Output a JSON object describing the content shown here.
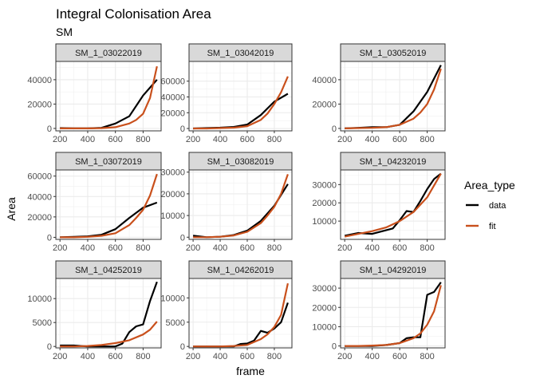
{
  "title": "Integral Colonisation Area",
  "subtitle": "SM",
  "xlabel": "frame",
  "ylabel": "Area",
  "legend": {
    "title": "Area_type",
    "placement": "right",
    "entries": [
      {
        "label": "data",
        "color": "#000000"
      },
      {
        "label": "fit",
        "color": "#C9501C"
      }
    ]
  },
  "chart_data": {
    "type": "line",
    "facets": "3x3 grid, free y scales, shared x scale",
    "xlim": [
      170,
      930
    ],
    "xticks": [
      200,
      400,
      600,
      800
    ],
    "grid": true,
    "panels": [
      {
        "title": "SM_1_03022019",
        "ylim": [
          -2000,
          55000
        ],
        "yticks": [
          0,
          20000,
          40000
        ],
        "yticklabels": [
          "0",
          "20000",
          "40000"
        ],
        "series": [
          {
            "name": "data",
            "x": [
              200,
              300,
              400,
              500,
              600,
              700,
              800,
              900
            ],
            "y": [
              300,
              100,
              0,
              500,
              4000,
              10000,
              27000,
              40000
            ]
          },
          {
            "name": "fit",
            "x": [
              200,
              300,
              400,
              500,
              600,
              700,
              750,
              800,
              850,
              900
            ],
            "y": [
              0,
              0,
              0,
              200,
              1000,
              4000,
              7000,
              12000,
              25000,
              51000
            ]
          }
        ]
      },
      {
        "title": "SM_1_03042019",
        "ylim": [
          -3000,
          85000
        ],
        "yticks": [
          0,
          20000,
          40000,
          60000
        ],
        "yticklabels": [
          "0",
          "20000",
          "40000",
          "60000"
        ],
        "series": [
          {
            "name": "data",
            "x": [
              200,
              300,
              400,
              500,
              600,
              700,
              800,
              900
            ],
            "y": [
              0,
              500,
              1000,
              2000,
              5000,
              17000,
              34000,
              44000
            ]
          },
          {
            "name": "fit",
            "x": [
              200,
              300,
              400,
              500,
              600,
              700,
              750,
              800,
              850,
              900
            ],
            "y": [
              0,
              0,
              500,
              1000,
              3000,
              11000,
              19000,
              31000,
              46000,
              66000
            ]
          }
        ]
      },
      {
        "title": "SM_1_03052019",
        "ylim": [
          -2000,
          55000
        ],
        "yticks": [
          0,
          20000,
          40000
        ],
        "yticklabels": [
          "0",
          "20000",
          "40000"
        ],
        "series": [
          {
            "name": "data",
            "x": [
              200,
              300,
              400,
              500,
              600,
              700,
              800,
              900
            ],
            "y": [
              0,
              500,
              1000,
              1000,
              3000,
              14000,
              30000,
              52000
            ]
          },
          {
            "name": "fit",
            "x": [
              200,
              300,
              400,
              500,
              600,
              700,
              750,
              800,
              850,
              900
            ],
            "y": [
              0,
              300,
              500,
              1000,
              3000,
              8000,
              13000,
              20000,
              32000,
              49000
            ]
          }
        ]
      },
      {
        "title": "SM_1_03072019",
        "ylim": [
          -2000,
          66000
        ],
        "yticks": [
          0,
          20000,
          40000,
          60000
        ],
        "yticklabels": [
          "0",
          "20000",
          "40000",
          "60000"
        ],
        "series": [
          {
            "name": "data",
            "x": [
              200,
              300,
              400,
              500,
              600,
              700,
              800,
              900
            ],
            "y": [
              0,
              500,
              1000,
              2500,
              8000,
              19000,
              29000,
              34000
            ]
          },
          {
            "name": "fit",
            "x": [
              200,
              300,
              400,
              500,
              600,
              700,
              750,
              800,
              850,
              900
            ],
            "y": [
              0,
              0,
              500,
              1500,
              4000,
              12000,
              19000,
              27000,
              41000,
              62000
            ]
          }
        ]
      },
      {
        "title": "SM_1_03082019",
        "ylim": [
          -1000,
          31000
        ],
        "yticks": [
          0,
          10000,
          20000,
          30000
        ],
        "yticklabels": [
          "0",
          "10000",
          "20000",
          "30000"
        ],
        "series": [
          {
            "name": "data",
            "x": [
              200,
              300,
              400,
              500,
              600,
              700,
              800,
              900
            ],
            "y": [
              700,
              0,
              200,
              1000,
              3000,
              7500,
              14500,
              24500
            ]
          },
          {
            "name": "fit",
            "x": [
              200,
              300,
              400,
              500,
              600,
              700,
              750,
              800,
              850,
              900
            ],
            "y": [
              0,
              0,
              200,
              800,
              2500,
              6500,
              10000,
              14000,
              20000,
              29000
            ]
          }
        ]
      },
      {
        "title": "SM_1_04232019",
        "ylim": [
          0,
          38000
        ],
        "yticks": [
          10000,
          20000,
          30000
        ],
        "yticklabels": [
          "10000",
          "20000",
          "30000"
        ],
        "series": [
          {
            "name": "data",
            "x": [
              200,
              300,
              400,
              500,
              550,
              600,
              650,
              700,
              750,
              800,
              850,
              900
            ],
            "y": [
              2000,
              3500,
              3000,
              5000,
              6000,
              10500,
              15500,
              15000,
              21000,
              27500,
              33000,
              36000
            ]
          },
          {
            "name": "fit",
            "x": [
              200,
              300,
              400,
              500,
              600,
              700,
              800,
              900
            ],
            "y": [
              1500,
              3000,
              4500,
              6500,
              10000,
              15000,
              23000,
              36000
            ]
          }
        ]
      },
      {
        "title": "SM_1_04252019",
        "ylim": [
          -300,
          14200
        ],
        "yticks": [
          0,
          5000,
          10000
        ],
        "yticklabels": [
          "0",
          "5000",
          "10000"
        ],
        "series": [
          {
            "name": "data",
            "x": [
              200,
              300,
              400,
              500,
              600,
              650,
              700,
              750,
              800,
              850,
              900
            ],
            "y": [
              200,
              200,
              0,
              0,
              0,
              600,
              3000,
              4200,
              4600,
              9500,
              13500
            ]
          },
          {
            "name": "fit",
            "x": [
              200,
              300,
              400,
              500,
              600,
              700,
              800,
              850,
              900
            ],
            "y": [
              0,
              0,
              100,
              300,
              700,
              1300,
              2500,
              3500,
              5200
            ]
          }
        ]
      },
      {
        "title": "SM_1_04262019",
        "ylim": [
          -300,
          14000
        ],
        "yticks": [
          0,
          5000,
          10000
        ],
        "yticklabels": [
          "0",
          "5000",
          "10000"
        ],
        "series": [
          {
            "name": "data",
            "x": [
              200,
              300,
              400,
              500,
              550,
              600,
              650,
              700,
              750,
              800,
              850,
              900
            ],
            "y": [
              0,
              0,
              0,
              0,
              500,
              600,
              1200,
              3200,
              2800,
              3700,
              5000,
              9000
            ]
          },
          {
            "name": "fit",
            "x": [
              200,
              300,
              400,
              500,
              600,
              700,
              750,
              800,
              850,
              900
            ],
            "y": [
              0,
              0,
              0,
              100,
              300,
              1500,
              2500,
              4000,
              6500,
              13000
            ]
          }
        ]
      },
      {
        "title": "SM_1_04292019",
        "ylim": [
          -1000,
          35000
        ],
        "yticks": [
          0,
          10000,
          20000,
          30000
        ],
        "yticklabels": [
          "0",
          "10000",
          "20000",
          "30000"
        ],
        "series": [
          {
            "name": "data",
            "x": [
              200,
              300,
              400,
              500,
              600,
              650,
              700,
              750,
              800,
              850,
              900
            ],
            "y": [
              0,
              0,
              0,
              500,
              1500,
              4000,
              4500,
              4500,
              26500,
              28000,
              33000
            ]
          },
          {
            "name": "fit",
            "x": [
              200,
              300,
              400,
              500,
              600,
              700,
              750,
              800,
              850,
              900
            ],
            "y": [
              0,
              0,
              200,
              500,
              1500,
              4000,
              6500,
              11000,
              18000,
              31500
            ]
          }
        ]
      }
    ]
  }
}
